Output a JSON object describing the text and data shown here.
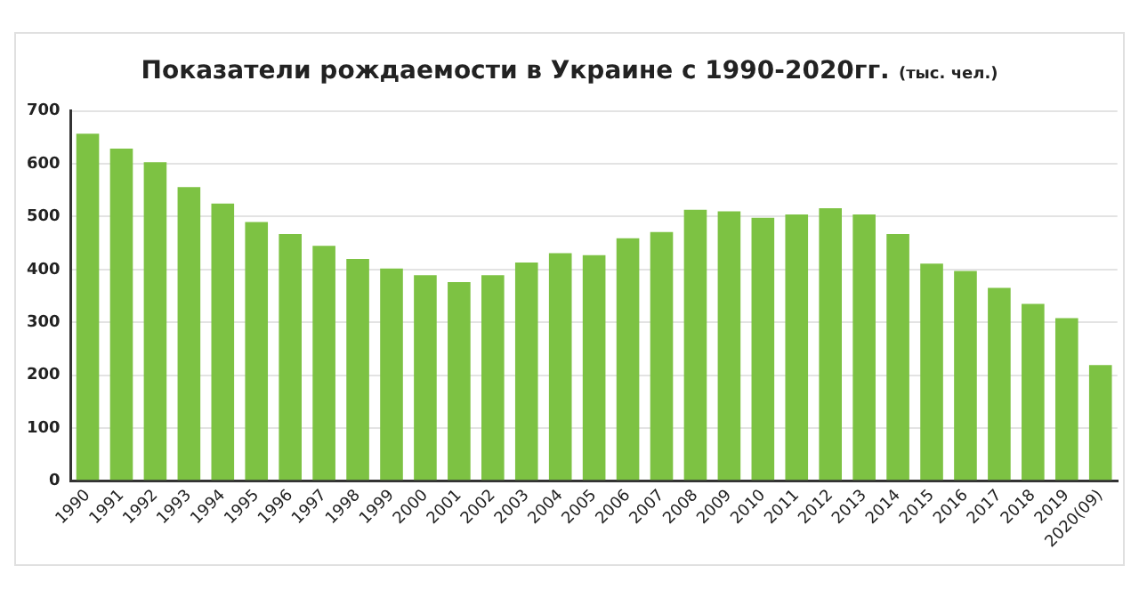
{
  "chart_data": {
    "type": "bar",
    "title": "Показатели рождаемости в Украине с 1990-2020гг.",
    "subtitle": "(тыс. чел.)",
    "categories": [
      "1990",
      "1991",
      "1992",
      "1993",
      "1994",
      "1995",
      "1996",
      "1997",
      "1998",
      "1999",
      "2000",
      "2001",
      "2002",
      "2003",
      "2004",
      "2005",
      "2006",
      "2007",
      "2008",
      "2009",
      "2010",
      "2011",
      "2012",
      "2013",
      "2014",
      "2015",
      "2016",
      "2017",
      "2018",
      "2019",
      "2020(09)"
    ],
    "values": [
      657,
      629,
      603,
      556,
      525,
      490,
      467,
      445,
      420,
      402,
      389,
      376,
      389,
      413,
      431,
      427,
      459,
      471,
      513,
      510,
      498,
      504,
      516,
      504,
      467,
      411,
      397,
      365,
      335,
      308,
      219
    ],
    "color": "#7dc243",
    "ylim": [
      0,
      700
    ],
    "yticks": [
      0,
      100,
      200,
      300,
      400,
      500,
      600,
      700
    ],
    "grid": "y"
  }
}
